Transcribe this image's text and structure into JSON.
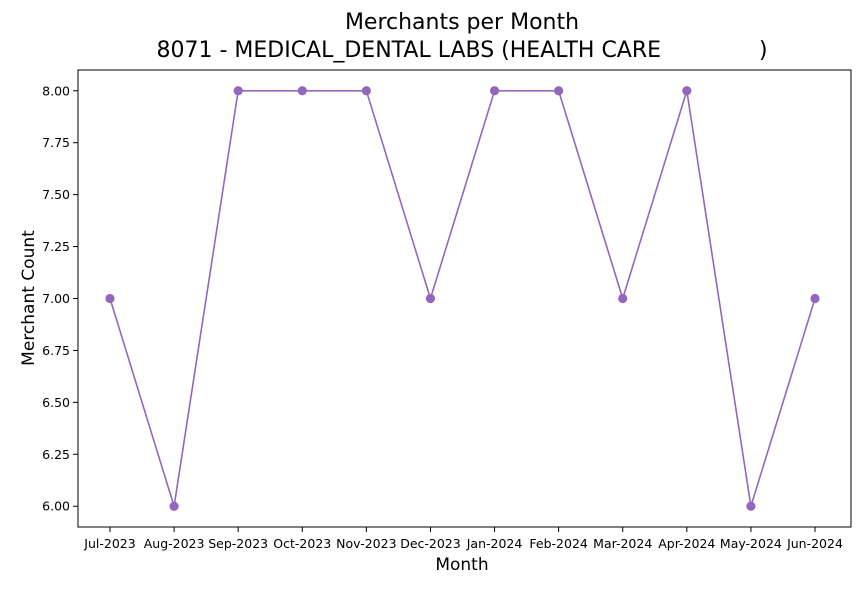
{
  "chart_data": {
    "type": "line",
    "title": "Merchants per Month",
    "subtitle": "8071 - MEDICAL_DENTAL LABS (HEALTH CARE              )",
    "xlabel": "Month",
    "ylabel": "Merchant Count",
    "categories": [
      "Jul-2023",
      "Aug-2023",
      "Sep-2023",
      "Oct-2023",
      "Nov-2023",
      "Dec-2023",
      "Jan-2024",
      "Feb-2024",
      "Mar-2024",
      "Apr-2024",
      "May-2024",
      "Jun-2024"
    ],
    "series": [
      {
        "values": [
          7,
          6,
          8,
          8,
          8,
          7,
          8,
          8,
          7,
          8,
          6,
          7
        ],
        "color": "#9467bd",
        "marker": "circle"
      }
    ],
    "ylim": [
      5.9,
      8.1
    ],
    "yticks": [
      "6.00",
      "6.25",
      "6.50",
      "6.75",
      "7.00",
      "7.25",
      "7.50",
      "7.75",
      "8.00"
    ],
    "grid": false,
    "legend": "none"
  }
}
